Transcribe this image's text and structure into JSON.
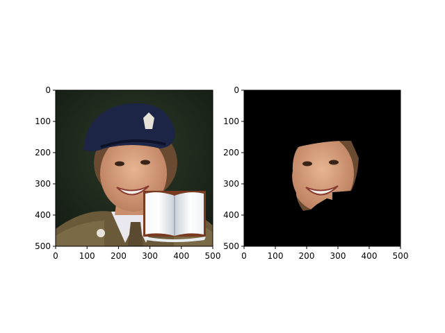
{
  "figure": {
    "panels": [
      {
        "name": "original-photo",
        "description_icon": "portrait-with-book-occluder",
        "x_ticks": [
          "0",
          "100",
          "200",
          "300",
          "400",
          "500"
        ],
        "y_ticks": [
          "0",
          "100",
          "200",
          "300",
          "400",
          "500"
        ],
        "xlim": [
          0,
          500
        ],
        "ylim": [
          500,
          0
        ]
      },
      {
        "name": "face-mask-photo",
        "description_icon": "segmented-face-on-black",
        "x_ticks": [
          "0",
          "100",
          "200",
          "300",
          "400",
          "500"
        ],
        "y_ticks": [
          "0",
          "100",
          "200",
          "300",
          "400",
          "500"
        ],
        "xlim": [
          0,
          500
        ],
        "ylim": [
          500,
          0
        ]
      }
    ]
  }
}
